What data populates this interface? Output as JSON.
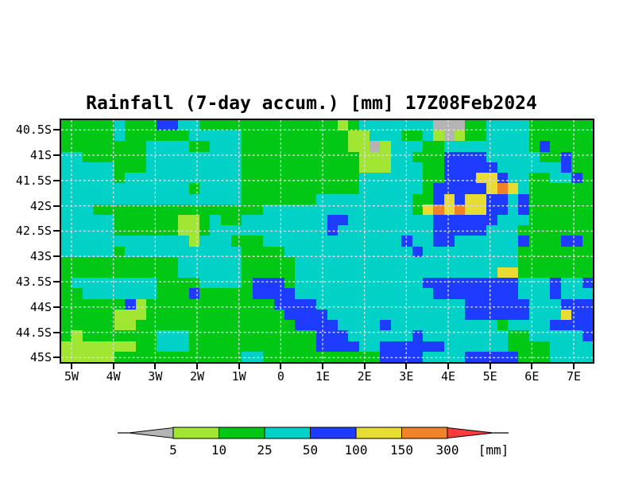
{
  "title": "Rainfall (7-day accum.) [mm] 17Z08Feb2024",
  "chart_data": {
    "type": "heatmap",
    "title": "Rainfall (7-day accum.) [mm] 17Z08Feb2024",
    "unit": "[mm]",
    "x_axis": {
      "ticks": [
        "5W",
        "4W",
        "3W",
        "2W",
        "1W",
        "0",
        "1E",
        "2E",
        "3E",
        "4E",
        "5E",
        "6E",
        "7E"
      ]
    },
    "y_axis": {
      "ticks": [
        "40.5S",
        "41S",
        "41.5S",
        "42S",
        "42.5S",
        "43S",
        "43.5S",
        "44S",
        "44.5S",
        "45S"
      ]
    },
    "colorbar": {
      "levels": [
        "5",
        "10",
        "25",
        "50",
        "100",
        "150",
        "300"
      ],
      "unit_label": "[mm]",
      "segment_colors": [
        "#a0e632",
        "#00c814",
        "#00d2c8",
        "#1e3cff",
        "#e6dc32",
        "#f08228"
      ],
      "under_arrow_color": "#b4b4b4",
      "over_arrow_color": "#fa3c3c",
      "outline_color": "#000000"
    },
    "palette": {
      "G": "#b4b4b4",
      "l": "#a0e632",
      "g": "#00c814",
      "c": "#00d2c8",
      "b": "#1e3cff",
      "y": "#e6dc32",
      "o": "#f08228"
    },
    "value_legend": {
      "G": "<5 mm",
      "l": "5-10 mm",
      "g": "10-25 mm",
      "c": "25-50 mm",
      "b": "50-100 mm",
      "y": "100-150 mm",
      "o": "150-300 mm"
    },
    "grid": {
      "cols": 50,
      "rows": 23,
      "cells": [
        "gggggcgggbbccggggggggggggglgcccccccGGGggccccgggggg",
        "gggggcggggggcccccggggggggggllcccggclGlggccccgggggg",
        "ggggggggccccggcccggggggggggllGlcccggccccccccgbgggg",
        "ccggggggcccccccccggggggggggglllccgggbbbbcccccggbgg",
        "cccccgggcccccccccggggggggggglllcccggbbbbbccccccbgg",
        "cccccgcccccccccccgggggggggggccccccggbbbyybccggccbg",
        "ccccccccccccgccccgggggggggggccccccgbbbbbyoycgggggg",
        "cccccccccccccccccgggggggcccccccccggbybyybbcbgggggg",
        "cccggggggggggggggggccccccccccccccgyoyoyybbcbgggggg",
        "cccccggggggllgcggccccccccbbccccccccbbbbbbcccgggggg",
        "cccccggggggllgcccccccccccbcccccccccbbbbbcccggggggg",
        "cccccccccccclcccgggcccccccccccccbccbbccccccbgggbbg",
        "cccccgcccccccccccggggccccccccccccbcccccccccggggggg",
        "gggggggggggccccccgggggcccccccccccccccccccccggggggg",
        "gggggggggggccccccgggggcccccccccccccccccccyyggggggg",
        "gccccccccggggccccgbbbgccccccccccccbbbbbbbbbcccbccb",
        "ggcccccccgggbgggggbbbbcccccccccccccbbbbbbbbcccbccc",
        "ggggggblggggggggggggbbbbccccccccccccccbbbbbbcccbbb",
        "ggggglllgggggggggggggbbbbcccccccccccccbbbbbbcccybb",
        "gggggllgggggggggggggggbbbbccccbccccccccccgccccbbbb",
        "glgggggggcccggggggggggggbbbccccccbccccccccggcccccb",
        "lllllllggcccggggggggggggbbbbccbbbbbbccccccggggcccc",
        "lllllggggggggggggccgggggggggggbbbbccccbbbbbgggcccc"
      ]
    }
  }
}
